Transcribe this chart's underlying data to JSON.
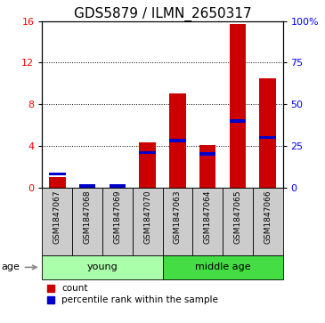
{
  "title": "GDS5879 / ILMN_2650317",
  "samples": [
    "GSM1847067",
    "GSM1847068",
    "GSM1847069",
    "GSM1847070",
    "GSM1847063",
    "GSM1847064",
    "GSM1847065",
    "GSM1847066"
  ],
  "counts": [
    1.0,
    0.0,
    0.0,
    4.3,
    9.0,
    4.1,
    15.7,
    10.5
  ],
  "percentile_ranks": [
    8.0,
    0.0,
    0.0,
    21.0,
    28.0,
    20.0,
    40.0,
    30.0
  ],
  "groups": [
    {
      "label": "young",
      "start": 0,
      "end": 4,
      "color": "#aaffaa"
    },
    {
      "label": "middle age",
      "start": 4,
      "end": 8,
      "color": "#44dd44"
    }
  ],
  "left_ylim": [
    0,
    16
  ],
  "right_ylim": [
    0,
    100
  ],
  "left_yticks": [
    0,
    4,
    8,
    12,
    16
  ],
  "right_yticks": [
    0,
    25,
    50,
    75,
    100
  ],
  "right_yticklabels": [
    "0",
    "25",
    "50",
    "75",
    "100%"
  ],
  "bar_color": "#cc0000",
  "percentile_color": "#0000cc",
  "bar_width": 0.55,
  "grid_color": "black",
  "bg_color": "#cccccc",
  "age_label": "age",
  "legend_count_label": "count",
  "legend_percentile_label": "percentile rank within the sample",
  "title_fontsize": 11,
  "tick_fontsize": 8,
  "sample_fontsize": 6.5
}
